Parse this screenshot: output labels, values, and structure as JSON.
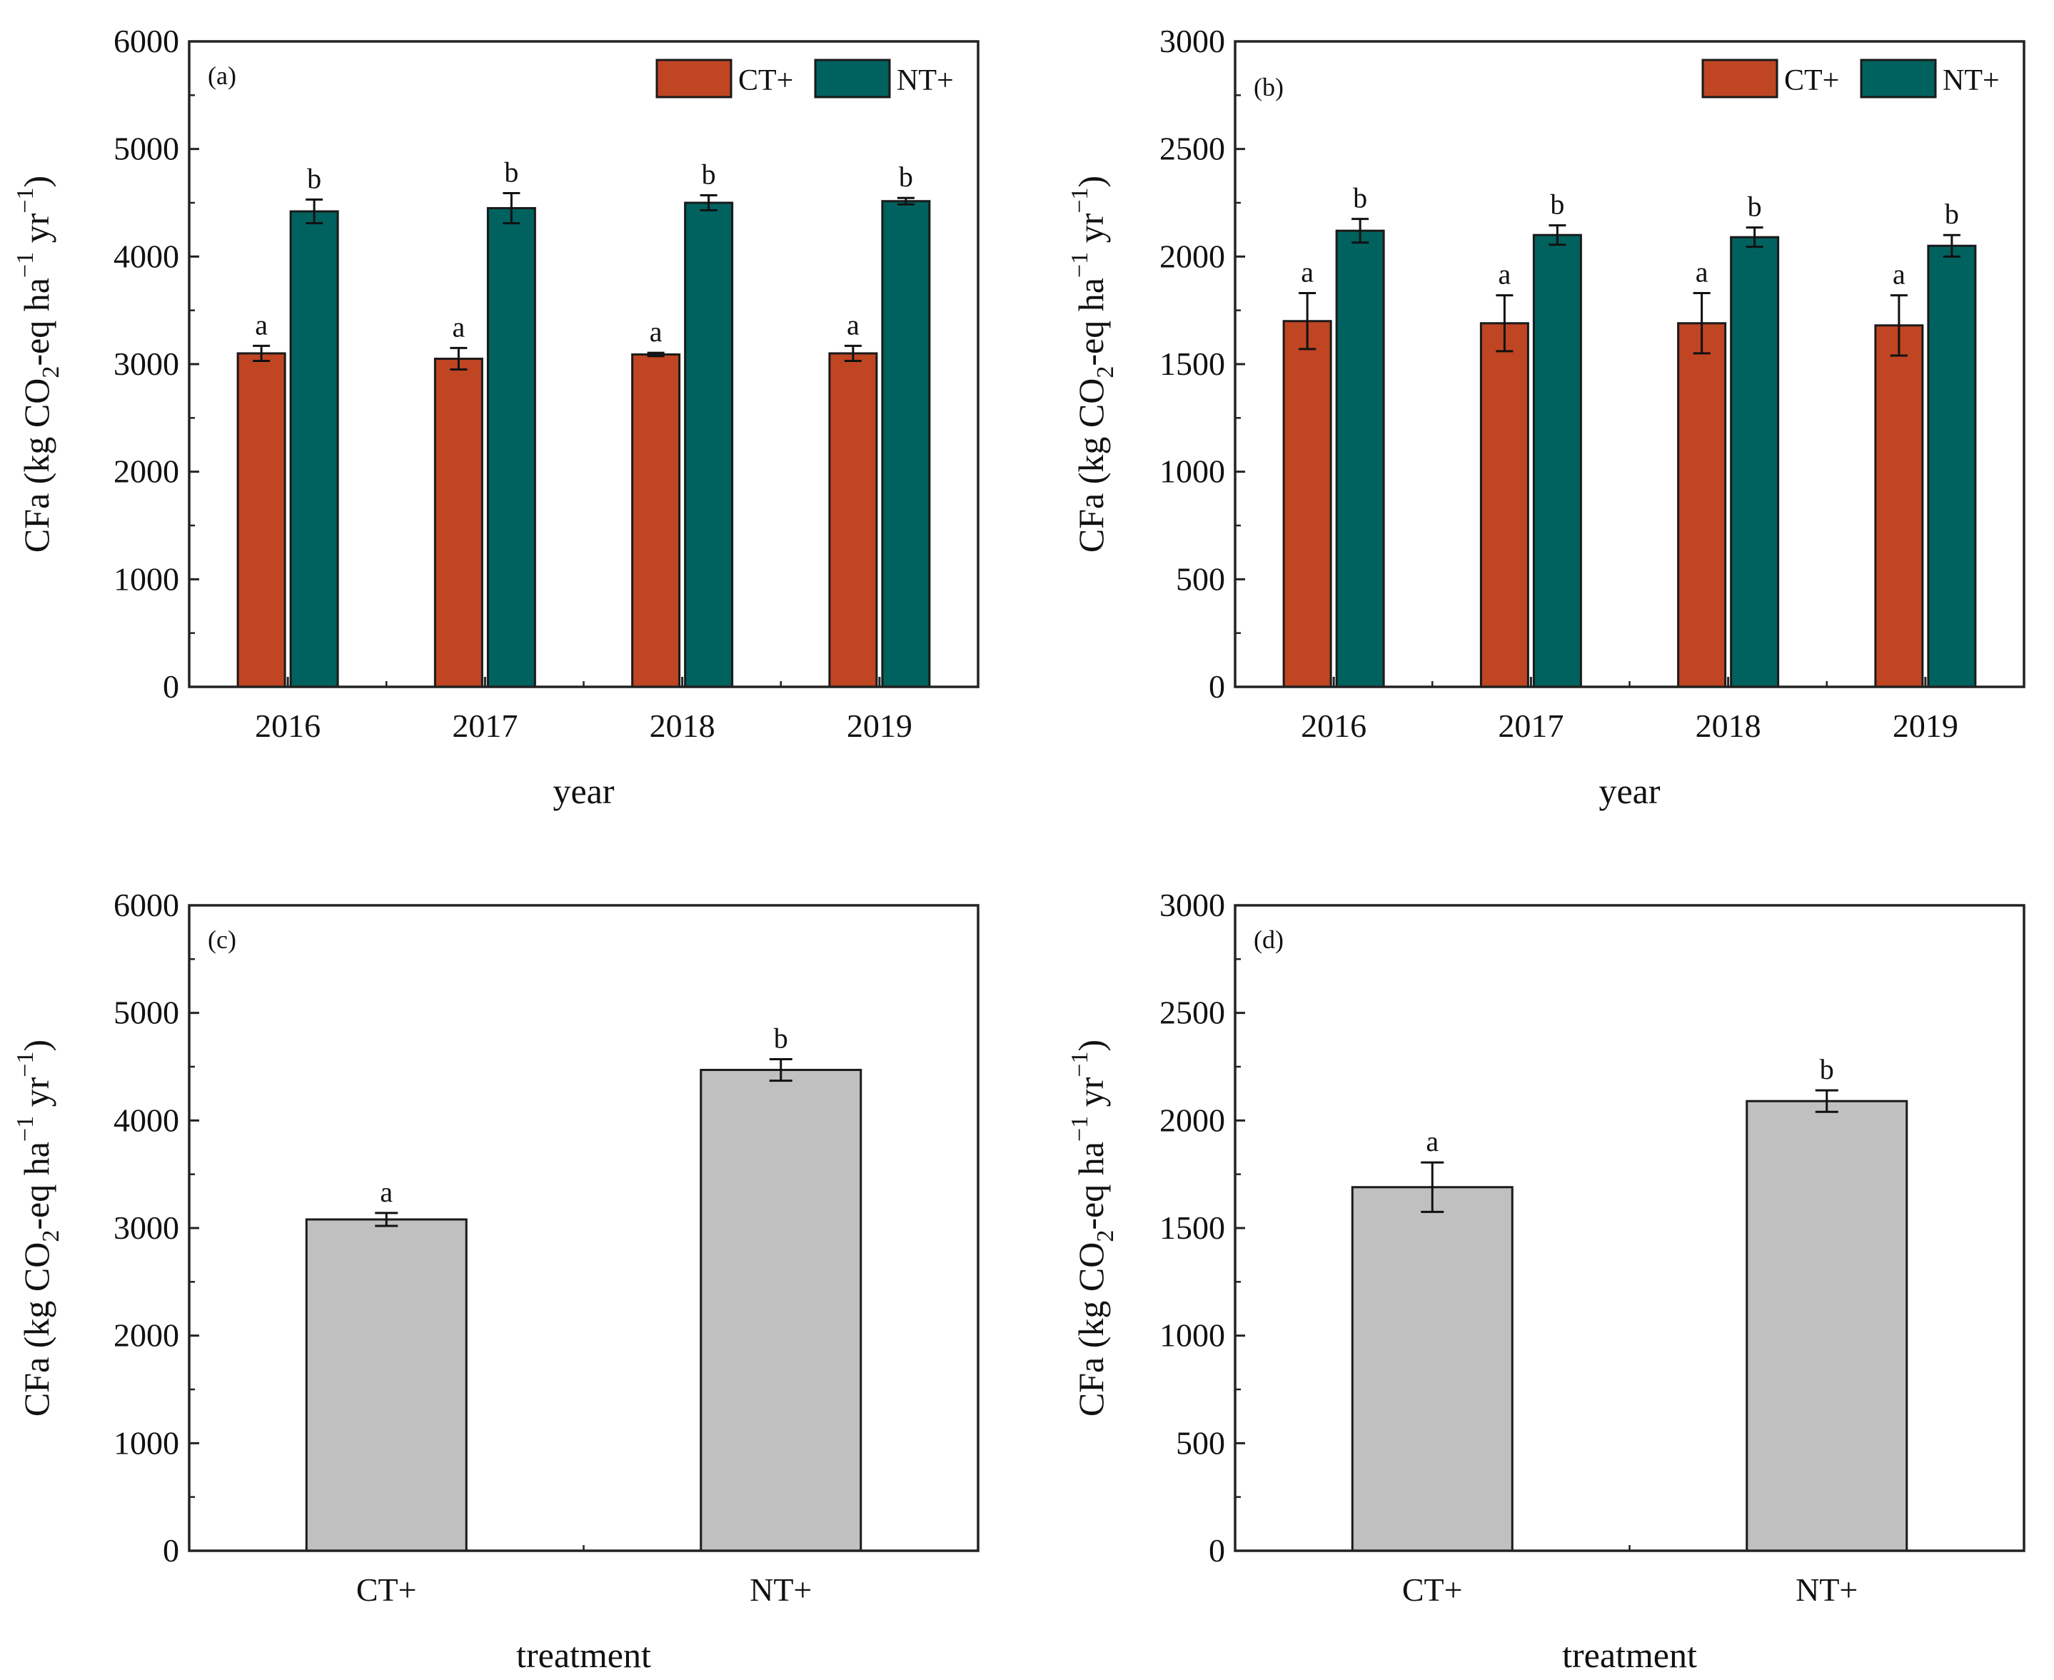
{
  "colors": {
    "ct": "#bf4523",
    "nt": "#00625f",
    "gray": "#c0c0c0",
    "axis": "#222222"
  },
  "chart_data": [
    {
      "panel": "(a)",
      "type": "bar",
      "categories": [
        "2016",
        "2017",
        "2018",
        "2019"
      ],
      "series": [
        {
          "name": "CT+",
          "values": [
            3100,
            3050,
            3090,
            3100
          ],
          "errors": [
            70,
            100,
            15,
            70
          ],
          "sig": [
            "a",
            "a",
            "a",
            "a"
          ]
        },
        {
          "name": "NT+",
          "values": [
            4420,
            4450,
            4500,
            4515
          ],
          "errors": [
            110,
            140,
            70,
            30
          ],
          "sig": [
            "b",
            "b",
            "b",
            "b"
          ]
        }
      ],
      "xlabel": "year",
      "ylabel": {
        "prefix": "CFa (kg CO",
        "sub": "2",
        "mid": "-eq ha",
        "sup1": "−1",
        "mid2": " yr",
        "sup2": "−1",
        "suffix": ")"
      },
      "ylim": [
        0,
        6000
      ],
      "yticks": [
        "0",
        "1000",
        "2000",
        "3000",
        "4000",
        "5000",
        "6000"
      ],
      "legend": [
        "CT+",
        "NT+"
      ],
      "legend_position": "top-right"
    },
    {
      "panel": "(b)",
      "type": "bar",
      "categories": [
        "2016",
        "2017",
        "2018",
        "2019"
      ],
      "series": [
        {
          "name": "CT+",
          "values": [
            1700,
            1690,
            1690,
            1680
          ],
          "errors": [
            130,
            130,
            140,
            140
          ],
          "sig": [
            "a",
            "a",
            "a",
            "a"
          ]
        },
        {
          "name": "NT+",
          "values": [
            2120,
            2100,
            2090,
            2050
          ],
          "errors": [
            55,
            45,
            45,
            50
          ],
          "sig": [
            "b",
            "b",
            "b",
            "b"
          ]
        }
      ],
      "xlabel": "year",
      "ylabel": {
        "prefix": "CFa (kg CO",
        "sub": "2",
        "mid": "-eq ha",
        "sup1": "−1",
        "mid2": " yr",
        "sup2": "−1",
        "suffix": ")"
      },
      "ylim": [
        0,
        3000
      ],
      "yticks": [
        "0",
        "500",
        "1000",
        "1500",
        "2000",
        "2500",
        "3000"
      ],
      "legend": [
        "CT+",
        "NT+"
      ],
      "legend_position": "top-right"
    },
    {
      "panel": "(c)",
      "type": "bar",
      "categories": [
        "CT+",
        "NT+"
      ],
      "series": [
        {
          "name": "treatment",
          "values": [
            3080,
            4470
          ],
          "errors": [
            60,
            100
          ],
          "sig": [
            "a",
            "b"
          ]
        }
      ],
      "xlabel": "treatment",
      "ylabel": {
        "prefix": "CFa (kg CO",
        "sub": "2",
        "mid": "-eq ha",
        "sup1": "−1",
        "mid2": " yr",
        "sup2": "−1",
        "suffix": ")"
      },
      "ylim": [
        0,
        6000
      ],
      "yticks": [
        "0",
        "1000",
        "2000",
        "3000",
        "4000",
        "5000",
        "6000"
      ]
    },
    {
      "panel": "(d)",
      "type": "bar",
      "categories": [
        "CT+",
        "NT+"
      ],
      "series": [
        {
          "name": "treatment",
          "values": [
            1690,
            2090
          ],
          "errors": [
            115,
            50
          ],
          "sig": [
            "a",
            "b"
          ]
        }
      ],
      "xlabel": "treatment",
      "ylabel": {
        "prefix": "CFa (kg CO",
        "sub": "2",
        "mid": "-eq ha",
        "sup1": "−1",
        "mid2": " yr",
        "sup2": "−1",
        "suffix": ")"
      },
      "ylim": [
        0,
        3000
      ],
      "yticks": [
        "0",
        "500",
        "1000",
        "1500",
        "2000",
        "2500",
        "3000"
      ]
    }
  ]
}
